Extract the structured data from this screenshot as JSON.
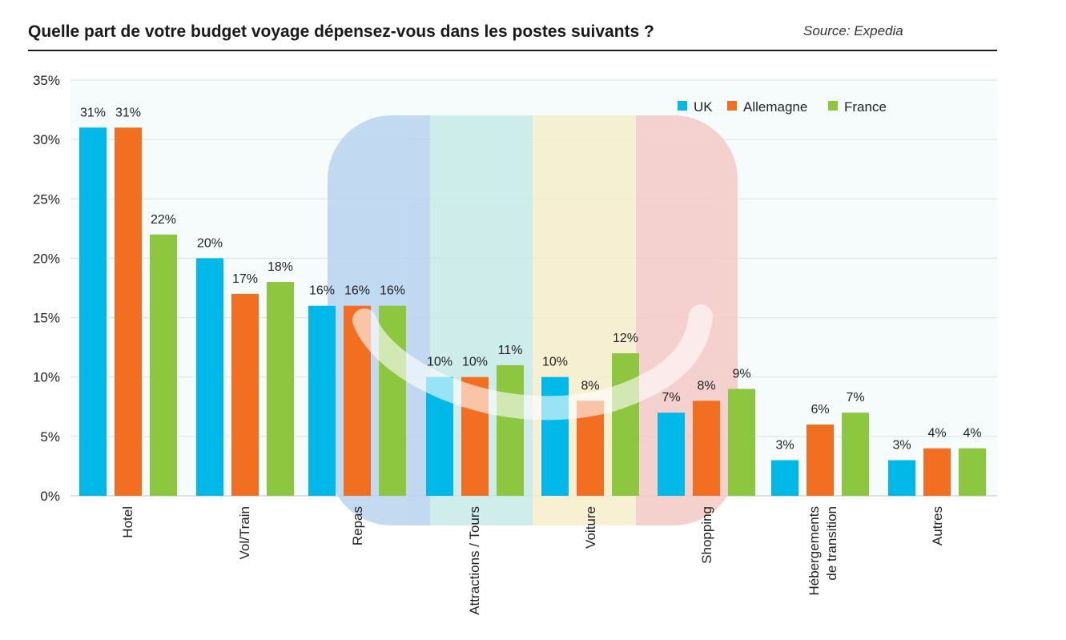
{
  "title": "Quelle part de votre budget voyage dépensez-vous dans les postes suivants ?",
  "source": "Source: Expedia",
  "chart_data": {
    "type": "bar",
    "categories": [
      "Hotel",
      "Vol/Train",
      "Repas",
      "Attractions / Tours",
      "Voiture",
      "Shopping",
      "Hébergements de transition",
      "Autres"
    ],
    "series": [
      {
        "name": "UK",
        "color": "#00b9e8",
        "values": [
          31,
          20,
          16,
          10,
          10,
          7,
          3,
          3
        ],
        "labels": [
          "31%",
          "20%",
          "16%",
          "10%",
          "10%",
          "7%",
          "3%",
          "3%"
        ]
      },
      {
        "name": "Allemagne",
        "color": "#f26f21",
        "values": [
          31,
          17,
          16,
          10,
          8,
          8,
          6,
          4
        ],
        "labels": [
          "31%",
          "17%",
          "16%",
          "10%",
          "8%",
          "8%",
          "6%",
          "4%"
        ]
      },
      {
        "name": "France",
        "color": "#8dc63f",
        "values": [
          22,
          18,
          16,
          11,
          12,
          9,
          7,
          4
        ],
        "labels": [
          "22%",
          "18%",
          "16%",
          "11%",
          "12%",
          "9%",
          "7%",
          "4%"
        ]
      }
    ],
    "y_ticks": [
      "0%",
      "5%",
      "10%",
      "15%",
      "20%",
      "25%",
      "30%",
      "35%"
    ],
    "ylim": [
      0,
      35
    ],
    "grid": true,
    "legend": "top-right",
    "xlabel": "",
    "ylabel": "",
    "watermark_colors": [
      "#b9d3ee",
      "#c6eae8",
      "#f6eecb",
      "#f4c9c6"
    ]
  }
}
